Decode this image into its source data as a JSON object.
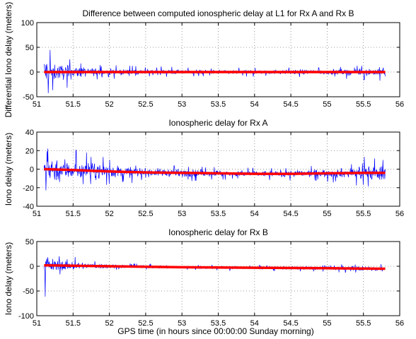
{
  "figure": {
    "xlabel": "GPS time (in hours since 00:00:00 Sunday morning)"
  },
  "colors": {
    "noise": "#0000ff",
    "trend": "#ff0000",
    "axis": "#000000",
    "grid": "#7f7f7f"
  },
  "chart_data": [
    {
      "type": "line",
      "title": "Difference between computed ionospheric delay at L1 for Rx A and Rx B",
      "xlabel": "",
      "ylabel": "Differential Iono delay (meters)",
      "xlim": [
        51,
        56
      ],
      "ylim": [
        -50,
        100
      ],
      "xticks": [
        "51",
        "51.5",
        "52",
        "52.5",
        "53",
        "53.5",
        "54",
        "54.5",
        "55",
        "55.5",
        "56"
      ],
      "yticks": [
        "-50",
        "0",
        "50",
        "100"
      ],
      "grid": true,
      "series": [
        {
          "style": "noise",
          "x_range": [
            51.1,
            55.8
          ],
          "envelope": {
            "x": [
              51.1,
              51.2,
              51.3,
              51.5,
              51.7,
              52.0,
              52.5,
              53.0,
              53.5,
              54.0,
              54.5,
              55.0,
              55.3,
              55.6,
              55.8
            ],
            "amplitude": [
              75,
              45,
              35,
              30,
              20,
              14,
              12,
              10,
              9,
              9,
              10,
              12,
              14,
              18,
              22
            ]
          }
        },
        {
          "style": "trend",
          "x": [
            51.1,
            52.0,
            53.0,
            54.0,
            55.0,
            55.8
          ],
          "y": [
            0,
            0,
            0,
            0,
            0,
            0
          ]
        }
      ]
    },
    {
      "type": "line",
      "title": "Ionospheric delay for Rx A",
      "xlabel": "",
      "ylabel": "Iono delay (meters)",
      "xlim": [
        51,
        56
      ],
      "ylim": [
        -40,
        40
      ],
      "xticks": [
        "51",
        "51.5",
        "52",
        "52.5",
        "53",
        "53.5",
        "54",
        "54.5",
        "55",
        "55.5",
        "56"
      ],
      "yticks": [
        "-40",
        "-20",
        "0",
        "20",
        "40"
      ],
      "grid": true,
      "series": [
        {
          "style": "noise",
          "x_range": [
            51.1,
            55.8
          ],
          "envelope": {
            "x": [
              51.1,
              51.3,
              51.5,
              51.7,
              52.0,
              52.5,
              53.0,
              53.5,
              54.0,
              54.5,
              55.0,
              55.3,
              55.6,
              55.8
            ],
            "amplitude": [
              24,
              32,
              22,
              20,
              16,
              10,
              9,
              8,
              7,
              8,
              10,
              12,
              20,
              16
            ]
          }
        },
        {
          "style": "trend",
          "x": [
            51.1,
            51.5,
            52.0,
            52.5,
            53.0,
            53.5,
            54.0,
            54.5,
            55.0,
            55.5,
            55.8
          ],
          "y": [
            0,
            -1,
            -2.5,
            -3.5,
            -4,
            -4.5,
            -5,
            -5,
            -4.5,
            -4,
            -4
          ]
        }
      ]
    },
    {
      "type": "line",
      "title": "Ionospheric delay for Rx B",
      "xlabel": "GPS time (in hours since 00:00:00 Sunday morning)",
      "ylabel": "Iono delay (meters)",
      "xlim": [
        51,
        56
      ],
      "ylim": [
        -100,
        50
      ],
      "xticks": [
        "51",
        "51.5",
        "52",
        "52.5",
        "53",
        "53.5",
        "54",
        "54.5",
        "55",
        "55.5",
        "56"
      ],
      "yticks": [
        "-100",
        "-50",
        "0",
        "50"
      ],
      "grid": true,
      "series": [
        {
          "style": "noise",
          "x_range": [
            51.1,
            55.8
          ],
          "envelope": {
            "x": [
              51.1,
              51.2,
              51.3,
              51.5,
              51.7,
              52.0,
              52.5,
              53.0,
              53.5,
              54.0,
              54.5,
              55.0,
              55.5,
              55.8
            ],
            "amplitude": [
              70,
              30,
              25,
              20,
              14,
              10,
              7,
              6,
              6,
              6,
              7,
              8,
              12,
              10
            ]
          }
        },
        {
          "style": "trend",
          "x": [
            51.1,
            52.0,
            53.0,
            54.0,
            55.0,
            55.8
          ],
          "y": [
            2,
            0,
            -2,
            -3,
            -4,
            -5
          ]
        }
      ]
    }
  ]
}
